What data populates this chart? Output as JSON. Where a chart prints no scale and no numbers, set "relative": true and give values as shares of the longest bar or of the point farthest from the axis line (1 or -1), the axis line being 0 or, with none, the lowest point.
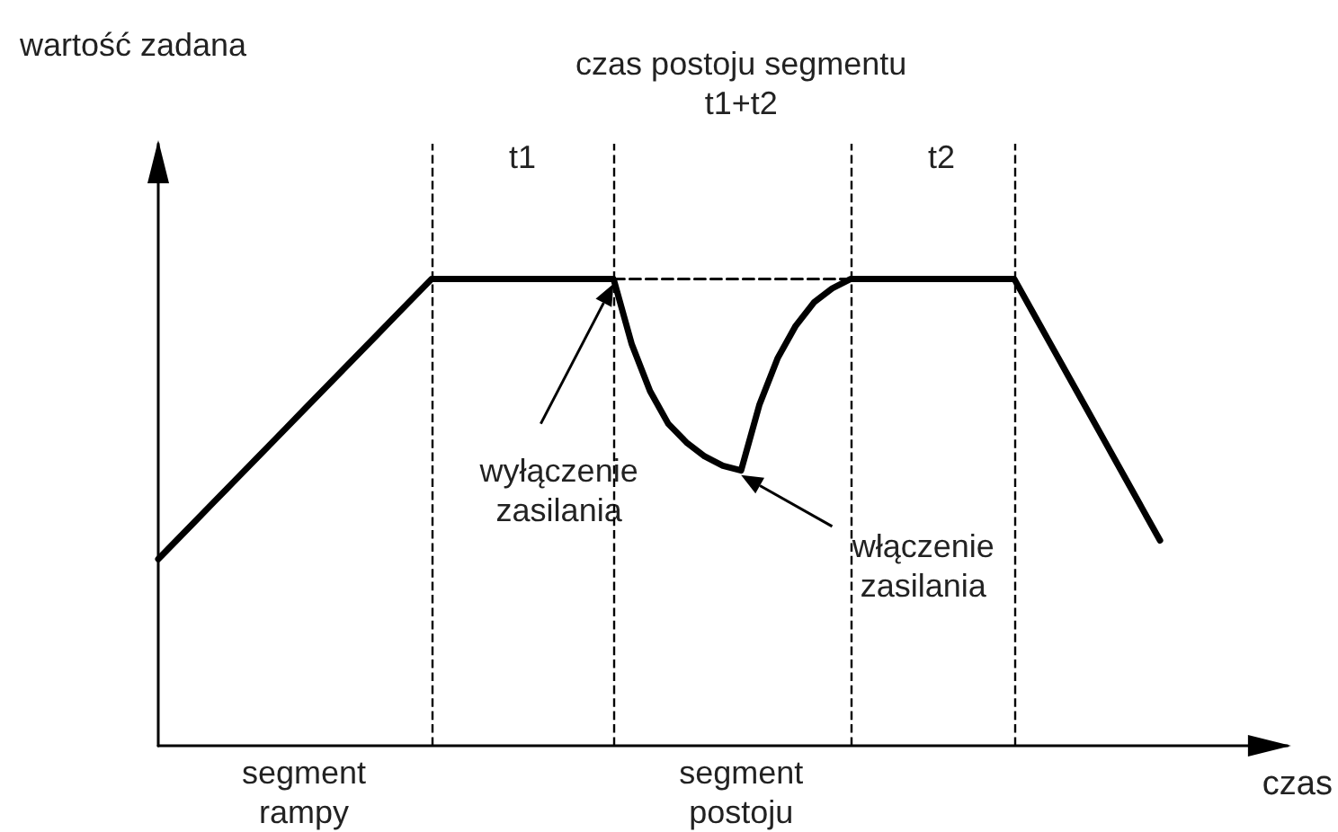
{
  "chart_data": {
    "type": "line",
    "relative": true,
    "xlabel": "czas",
    "categories": [
      null,
      null,
      null,
      null,
      null,
      null,
      null,
      null,
      null,
      null,
      null,
      null,
      null,
      null,
      null,
      null,
      null,
      null,
      null,
      null,
      null,
      null,
      null,
      null,
      null,
      null,
      null,
      null,
      null,
      null,
      null,
      null,
      null,
      null,
      null,
      null,
      null,
      null,
      null,
      null,
      null,
      null,
      null,
      null,
      null,
      null,
      null,
      null,
      null,
      null,
      null,
      null,
      null,
      null,
      null,
      null,
      null,
      null,
      null,
      null,
      null,
      null,
      null
    ],
    "series": [
      {
        "color": "#000000",
        "line_style": "solid",
        "values": [
          0.4,
          0.44,
          0.48,
          0.52,
          0.56,
          0.6,
          0.64,
          0.68,
          0.72,
          0.76,
          0.8,
          0.84,
          0.88,
          0.92,
          0.96,
          1,
          1,
          1,
          1,
          1,
          1,
          1,
          1,
          1,
          1,
          1,
          0.86,
          0.76,
          0.69,
          0.65,
          0.62,
          0.6,
          0.59,
          0.73,
          0.83,
          0.9,
          0.95,
          0.98,
          1,
          1,
          1,
          1,
          1,
          1,
          1,
          1,
          1,
          1,
          0.93,
          0.86,
          0.79,
          0.72,
          0.65,
          0.58,
          0.51,
          0.44,
          null,
          null,
          null,
          null,
          null,
          null,
          null
        ]
      },
      {
        "color": "#000000",
        "line_style": "dashed",
        "values": [
          null,
          null,
          null,
          null,
          null,
          null,
          null,
          null,
          null,
          null,
          null,
          null,
          null,
          null,
          null,
          null,
          null,
          null,
          null,
          null,
          null,
          null,
          null,
          null,
          null,
          1,
          1,
          1,
          1,
          1,
          1,
          1,
          1,
          1,
          1,
          1,
          1,
          1,
          1,
          null,
          null,
          null,
          null,
          null,
          null,
          null,
          null,
          null,
          null,
          null,
          null,
          null,
          null,
          null,
          null,
          null,
          null,
          null,
          null,
          null,
          null,
          null,
          null
        ]
      }
    ],
    "annotations": [
      "czas postoju segmentu\nt1+t2",
      "t1",
      "t2",
      "wyłączenie\nzasilania",
      "włączenie\nzasilania",
      "segment\nrampy",
      "segment\npostoju",
      "wartość zadana"
    ],
    "marker": "none",
    "grid": false,
    "tick_labels": false
  }
}
